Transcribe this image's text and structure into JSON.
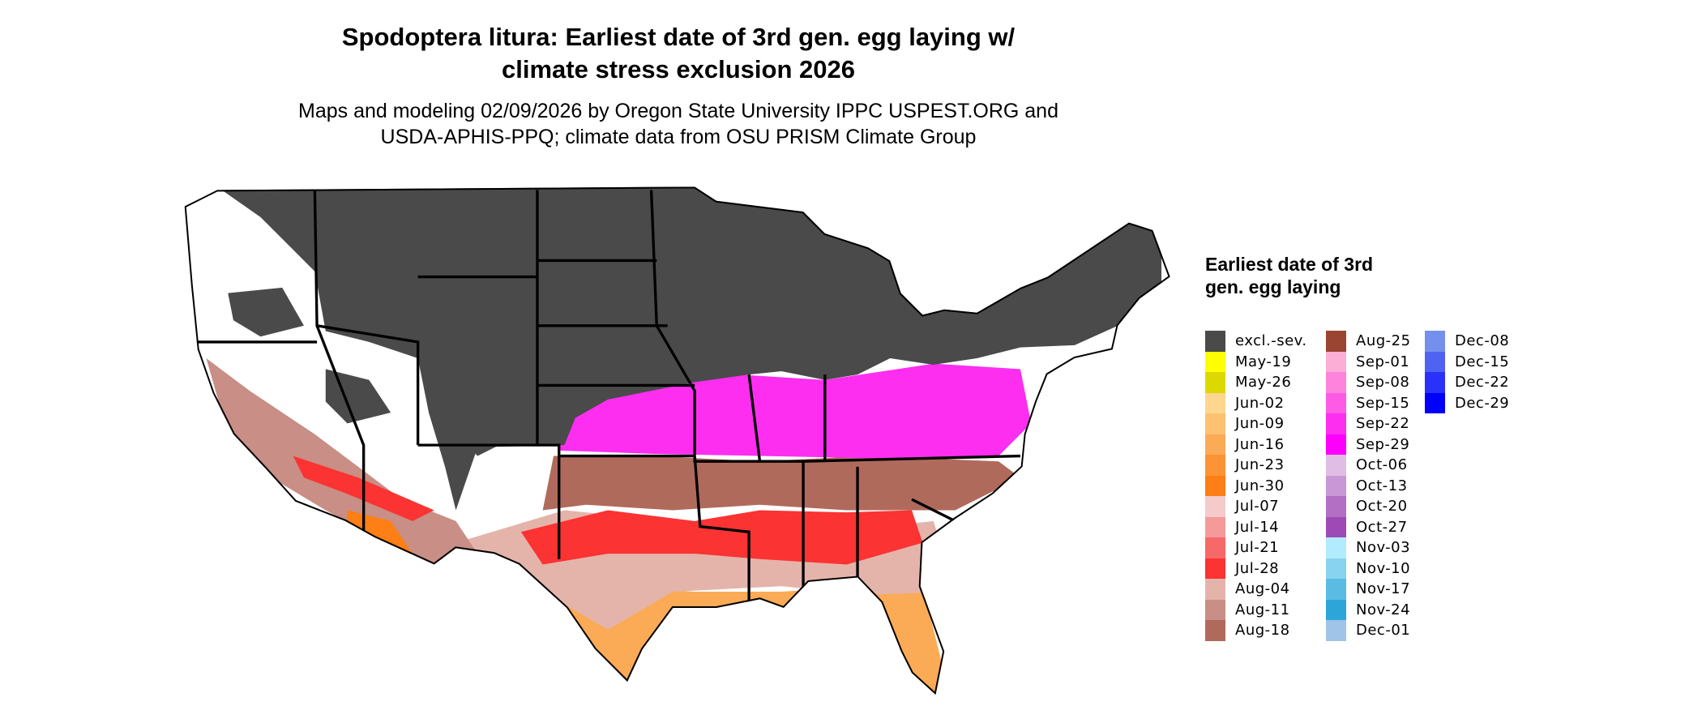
{
  "title": {
    "line1": "Spodoptera litura: Earliest date of 3rd gen. egg laying w/",
    "line2": "climate stress exclusion 2026"
  },
  "subtitle": {
    "line1": "Maps and modeling 02/09/2026 by Oregon State University IPPC USPEST.ORG and",
    "line2": "USDA-APHIS-PPQ; climate data from OSU PRISM Climate Group"
  },
  "legend": {
    "title": "Earliest date of 3rd gen. egg laying",
    "columns": [
      [
        {
          "label": "excl.-sev.",
          "color": "#4a4a4a"
        },
        {
          "label": "May-19",
          "color": "#ffff00"
        },
        {
          "label": "May-26",
          "color": "#dcd800"
        },
        {
          "label": "Jun-02",
          "color": "#fed690"
        },
        {
          "label": "Jun-09",
          "color": "#fdc170"
        },
        {
          "label": "Jun-16",
          "color": "#fbaa55"
        },
        {
          "label": "Jun-23",
          "color": "#fc9335"
        },
        {
          "label": "Jun-30",
          "color": "#fd7f15"
        },
        {
          "label": "Jul-07",
          "color": "#f5caca"
        },
        {
          "label": "Jul-14",
          "color": "#f49a9a"
        },
        {
          "label": "Jul-21",
          "color": "#f76868"
        },
        {
          "label": "Jul-28",
          "color": "#fb3333"
        },
        {
          "label": "Aug-04",
          "color": "#e4b4ab"
        },
        {
          "label": "Aug-11",
          "color": "#c98e85"
        },
        {
          "label": "Aug-18",
          "color": "#b06a5c"
        }
      ],
      [
        {
          "label": "Aug-25",
          "color": "#9a4432"
        },
        {
          "label": "Sep-01",
          "color": "#fdaed6"
        },
        {
          "label": "Sep-08",
          "color": "#fd83dd"
        },
        {
          "label": "Sep-15",
          "color": "#fd5be6"
        },
        {
          "label": "Sep-22",
          "color": "#fd2ef0"
        },
        {
          "label": "Sep-29",
          "color": "#fd00fb"
        },
        {
          "label": "Oct-06",
          "color": "#dfbde5"
        },
        {
          "label": "Oct-13",
          "color": "#c997d5"
        },
        {
          "label": "Oct-20",
          "color": "#b36fc4"
        },
        {
          "label": "Oct-27",
          "color": "#9d4ab6"
        },
        {
          "label": "Nov-03",
          "color": "#b2ebfd"
        },
        {
          "label": "Nov-10",
          "color": "#87d3f0"
        },
        {
          "label": "Nov-17",
          "color": "#5bbce3"
        },
        {
          "label": "Nov-24",
          "color": "#2da5d8"
        },
        {
          "label": "Dec-01",
          "color": "#a0c3e8"
        }
      ],
      [
        {
          "label": "Dec-08",
          "color": "#7490ec"
        },
        {
          "label": "Dec-15",
          "color": "#4f63f2"
        },
        {
          "label": "Dec-22",
          "color": "#2a31f8"
        },
        {
          "label": "Dec-29",
          "color": "#0000fd"
        }
      ]
    ]
  }
}
